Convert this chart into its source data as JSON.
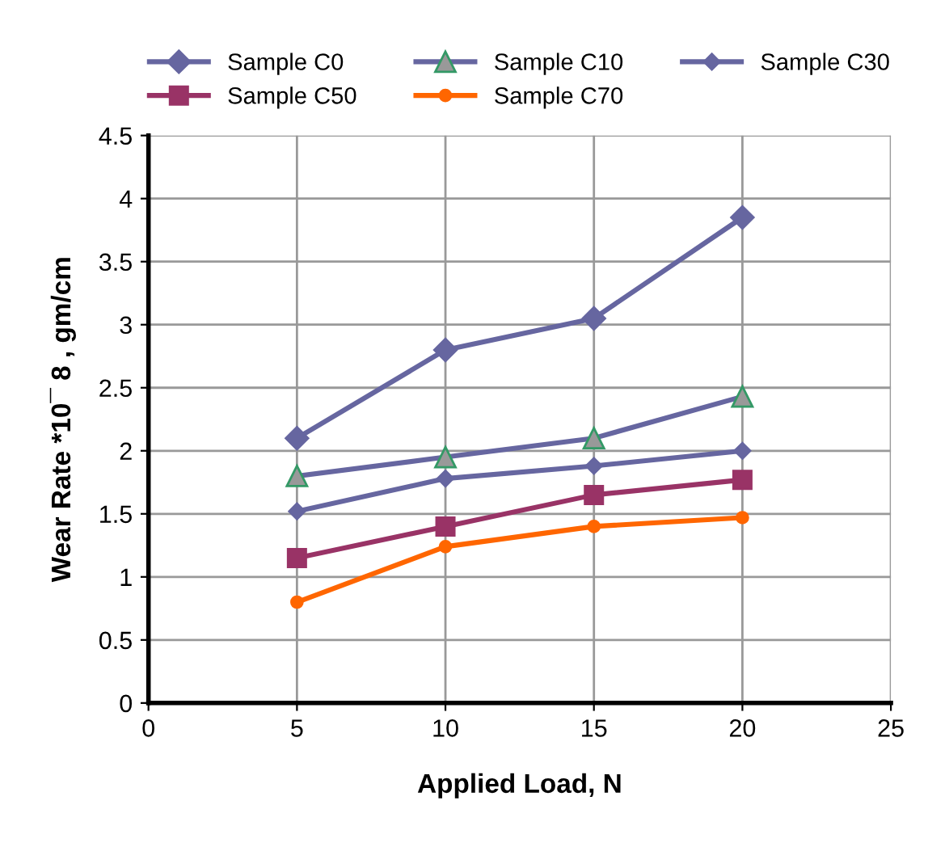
{
  "chart_data": {
    "type": "line",
    "xlabel": "Applied Load, N",
    "ylabel": "Wear Rate *10¯ 8 , gm/cm",
    "xlim": [
      0,
      25
    ],
    "xticks": [
      0,
      5,
      10,
      15,
      20,
      25
    ],
    "ylim": [
      0,
      4.5
    ],
    "yticks": [
      0,
      0.5,
      1,
      1.5,
      2,
      2.5,
      3,
      3.5,
      4,
      4.5
    ],
    "grid": true,
    "legend": "top",
    "x": [
      5,
      10,
      15,
      20
    ],
    "series": [
      {
        "name": "Sample C0",
        "color": "#6666a0",
        "marker": "diamond",
        "values": [
          2.1,
          2.8,
          3.05,
          3.85
        ]
      },
      {
        "name": "Sample C10",
        "color": "#6666a0",
        "marker": "triangle",
        "values": [
          1.8,
          1.95,
          2.1,
          2.43
        ]
      },
      {
        "name": "Sample C30",
        "color": "#6666a0",
        "marker": "diamond",
        "values": [
          1.52,
          1.78,
          1.88,
          2.0
        ]
      },
      {
        "name": "Sample C50",
        "color": "#993366",
        "marker": "square",
        "values": [
          1.15,
          1.4,
          1.65,
          1.77
        ]
      },
      {
        "name": "Sample C70",
        "color": "#ff6600",
        "marker": "circle",
        "values": [
          0.8,
          1.24,
          1.4,
          1.47
        ]
      }
    ]
  }
}
